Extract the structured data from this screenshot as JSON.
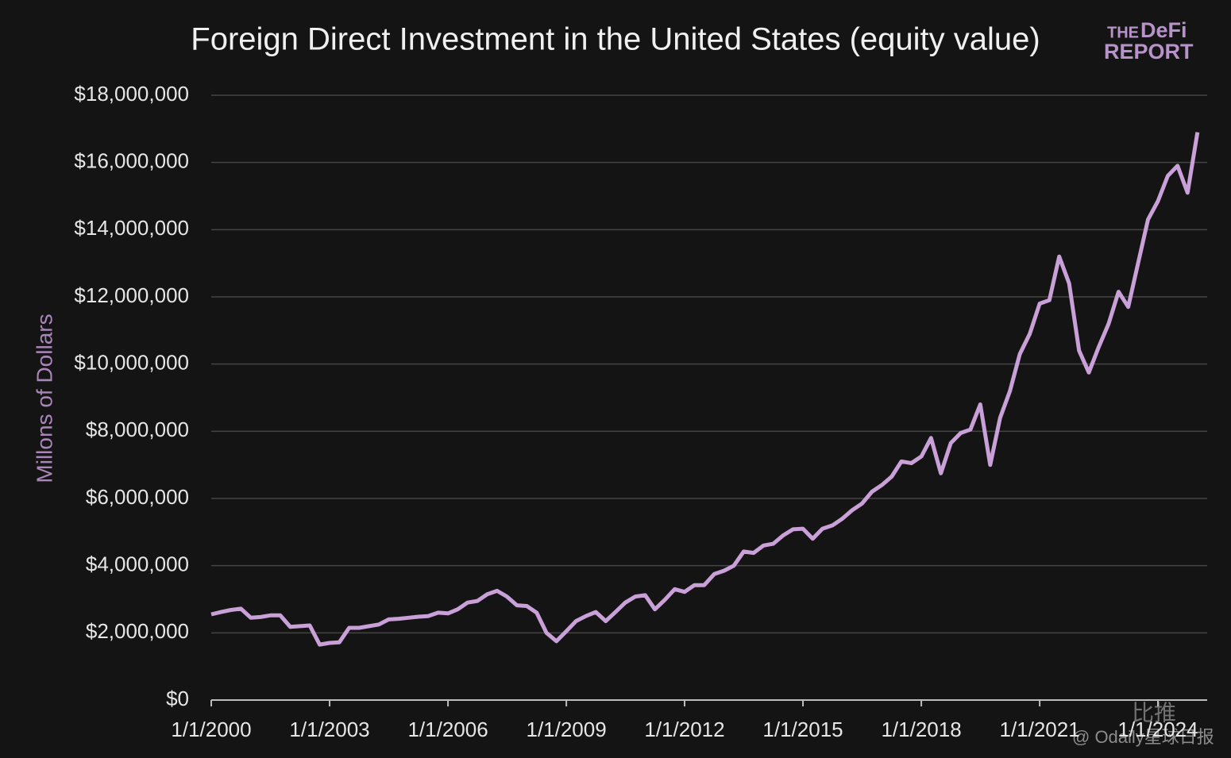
{
  "chart_data": {
    "type": "line",
    "title": "Foreign Direct Investment in the United States (equity value)",
    "ylabel": "Millons of Dollars",
    "logo": [
      "THE",
      "DeFi",
      "REPORT"
    ],
    "watermark": [
      "比推",
      "@ Odaily星球日报"
    ],
    "grid": true,
    "x": [
      "2000-01-01",
      "2000-04-01",
      "2000-07-01",
      "2000-10-01",
      "2001-01-01",
      "2001-04-01",
      "2001-07-01",
      "2001-10-01",
      "2002-01-01",
      "2002-04-01",
      "2002-07-01",
      "2002-10-01",
      "2003-01-01",
      "2003-04-01",
      "2003-07-01",
      "2003-10-01",
      "2004-01-01",
      "2004-04-01",
      "2004-07-01",
      "2004-10-01",
      "2005-01-01",
      "2005-04-01",
      "2005-07-01",
      "2005-10-01",
      "2006-01-01",
      "2006-04-01",
      "2006-07-01",
      "2006-10-01",
      "2007-01-01",
      "2007-04-01",
      "2007-07-01",
      "2007-10-01",
      "2008-01-01",
      "2008-04-01",
      "2008-07-01",
      "2008-10-01",
      "2009-01-01",
      "2009-04-01",
      "2009-07-01",
      "2009-10-01",
      "2010-01-01",
      "2010-04-01",
      "2010-07-01",
      "2010-10-01",
      "2011-01-01",
      "2011-04-01",
      "2011-07-01",
      "2011-10-01",
      "2012-01-01",
      "2012-04-01",
      "2012-07-01",
      "2012-10-01",
      "2013-01-01",
      "2013-04-01",
      "2013-07-01",
      "2013-10-01",
      "2014-01-01",
      "2014-04-01",
      "2014-07-01",
      "2014-10-01",
      "2015-01-01",
      "2015-04-01",
      "2015-07-01",
      "2015-10-01",
      "2016-01-01",
      "2016-04-01",
      "2016-07-01",
      "2016-10-01",
      "2017-01-01",
      "2017-04-01",
      "2017-07-01",
      "2017-10-01",
      "2018-01-01",
      "2018-04-01",
      "2018-07-01",
      "2018-10-01",
      "2019-01-01",
      "2019-04-01",
      "2019-07-01",
      "2019-10-01",
      "2020-01-01",
      "2020-04-01",
      "2020-07-01",
      "2020-10-01",
      "2021-01-01",
      "2021-04-01",
      "2021-07-01",
      "2021-10-01",
      "2022-01-01",
      "2022-04-01",
      "2022-07-01",
      "2022-10-01",
      "2023-01-01",
      "2023-04-01",
      "2023-07-01",
      "2023-10-01",
      "2024-01-01",
      "2024-04-01",
      "2024-07-01",
      "2024-10-01",
      "2025-01-01"
    ],
    "series": [
      {
        "name": "Foreign Direct Investment",
        "color": "#c9a0d8",
        "values": [
          2550000,
          2620000,
          2680000,
          2720000,
          2450000,
          2470000,
          2520000,
          2520000,
          2180000,
          2200000,
          2220000,
          1650000,
          1700000,
          1720000,
          2150000,
          2150000,
          2200000,
          2250000,
          2400000,
          2420000,
          2450000,
          2480000,
          2500000,
          2600000,
          2580000,
          2700000,
          2900000,
          2950000,
          3150000,
          3250000,
          3080000,
          2820000,
          2800000,
          2600000,
          2000000,
          1750000,
          2050000,
          2350000,
          2500000,
          2620000,
          2350000,
          2620000,
          2900000,
          3080000,
          3120000,
          2700000,
          2980000,
          3300000,
          3220000,
          3420000,
          3420000,
          3750000,
          3850000,
          4000000,
          4420000,
          4380000,
          4600000,
          4650000,
          4900000,
          5080000,
          5100000,
          4800000,
          5100000,
          5200000,
          5400000,
          5650000,
          5850000,
          6200000,
          6400000,
          6650000,
          7100000,
          7050000,
          7250000,
          7800000,
          6750000,
          7650000,
          7950000,
          8050000,
          8800000,
          7000000,
          8400000,
          9200000,
          10300000,
          10900000,
          11800000,
          11900000,
          13200000,
          12400000,
          10400000,
          9750000,
          10500000,
          11200000,
          12150000,
          11700000,
          13000000,
          14300000,
          14850000,
          15600000,
          15900000,
          15100000,
          16900000
        ]
      }
    ],
    "xlim": [
      "2000-01-01",
      "2025-04-01"
    ],
    "xticks": [
      {
        "value": "2000-01-01",
        "label": "1/1/2000"
      },
      {
        "value": "2003-01-01",
        "label": "1/1/2003"
      },
      {
        "value": "2006-01-01",
        "label": "1/1/2006"
      },
      {
        "value": "2009-01-01",
        "label": "1/1/2009"
      },
      {
        "value": "2012-01-01",
        "label": "1/1/2012"
      },
      {
        "value": "2015-01-01",
        "label": "1/1/2015"
      },
      {
        "value": "2018-01-01",
        "label": "1/1/2018"
      },
      {
        "value": "2021-01-01",
        "label": "1/1/2021"
      },
      {
        "value": "2024-01-01",
        "label": "1/1/2024"
      }
    ],
    "ylim": [
      0,
      18000000
    ],
    "yticks": [
      {
        "value": 0,
        "label": "$0"
      },
      {
        "value": 2000000,
        "label": "$2,000,000"
      },
      {
        "value": 4000000,
        "label": "$4,000,000"
      },
      {
        "value": 6000000,
        "label": "$6,000,000"
      },
      {
        "value": 8000000,
        "label": "$8,000,000"
      },
      {
        "value": 10000000,
        "label": "$10,000,000"
      },
      {
        "value": 12000000,
        "label": "$12,000,000"
      },
      {
        "value": 14000000,
        "label": "$14,000,000"
      },
      {
        "value": 16000000,
        "label": "$16,000,000"
      },
      {
        "value": 18000000,
        "label": "$18,000,000"
      }
    ]
  }
}
